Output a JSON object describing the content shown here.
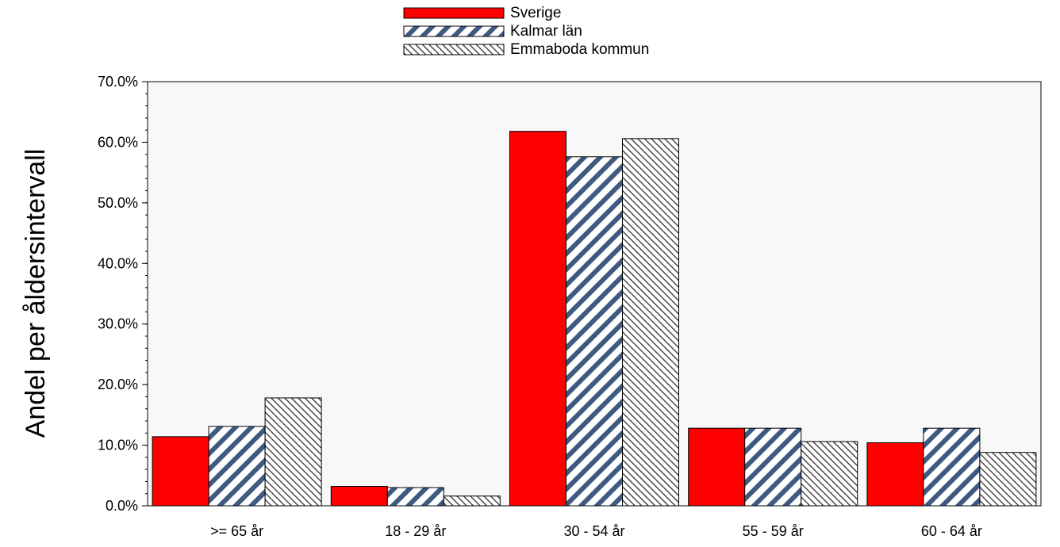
{
  "chart_data": {
    "type": "bar",
    "ylabel": "Andel per åldersintervall",
    "xlabel": "",
    "ylim": [
      0,
      70
    ],
    "ytick_values": [
      0,
      10,
      20,
      30,
      40,
      50,
      60,
      70
    ],
    "ytick_labels": [
      "0.0%",
      "10.0%",
      "20.0%",
      "30.0%",
      "40.0%",
      "50.0%",
      "60.0%",
      "70.0%"
    ],
    "categories": [
      ">= 65 år",
      "18 - 29 år",
      "30 - 54 år",
      "55 - 59 år",
      "60 - 64 år"
    ],
    "series": [
      {
        "name": "Sverige",
        "values": [
          11.4,
          3.2,
          61.8,
          12.8,
          10.4
        ],
        "color": "#ff0000",
        "pattern": "solid"
      },
      {
        "name": "Kalmar län",
        "values": [
          13.1,
          3.0,
          57.6,
          12.8,
          12.8
        ],
        "color": "#3f5a80",
        "pattern": "diagonal-wide"
      },
      {
        "name": "Emmaboda kommun",
        "values": [
          17.8,
          1.6,
          60.6,
          10.6,
          8.8
        ],
        "color": "#404040",
        "pattern": "diagonal-fine"
      }
    ],
    "legend_position": "top-center",
    "plot_background": "#f8f8f8",
    "grid": false
  }
}
